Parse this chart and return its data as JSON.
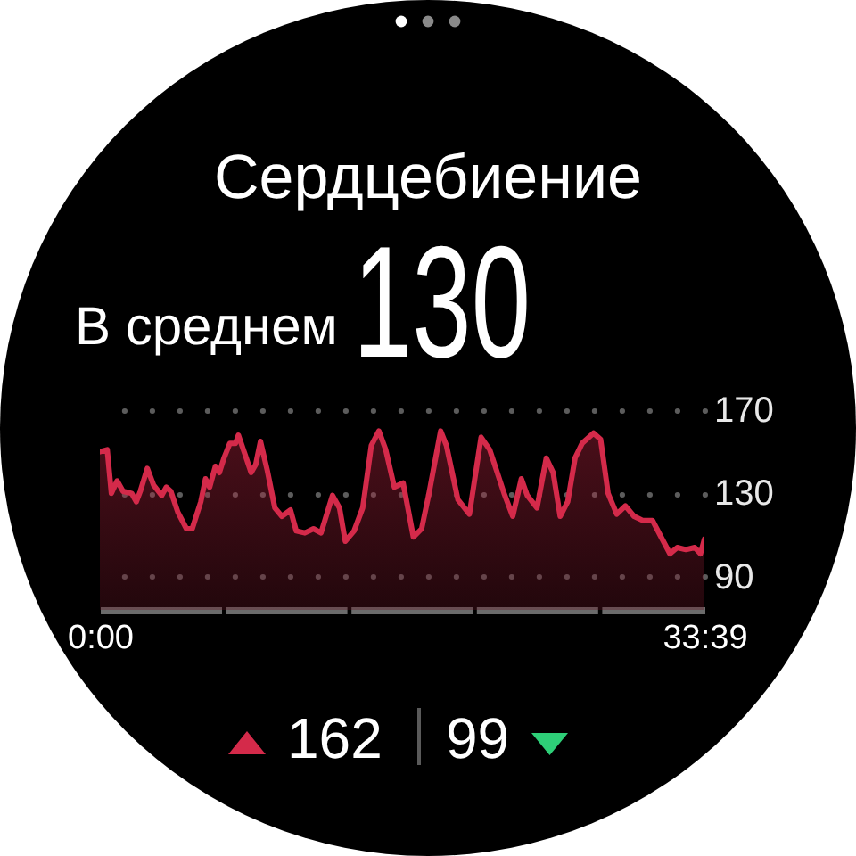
{
  "chart_data": {
    "type": "area",
    "title": "Сердцебиение",
    "annotations": [
      "В среднем",
      "130",
      "162",
      "99"
    ],
    "x": [
      0,
      0.41,
      0.64,
      0.96,
      1.29,
      1.77,
      2.03,
      2.25,
      2.64,
      2.99,
      3.44,
      3.7,
      3.95,
      4.34,
      4.82,
      5.14,
      5.62,
      5.88,
      6.11,
      6.43,
      6.65,
      6.91,
      7.23,
      7.55,
      7.71,
      8.03,
      8.42,
      8.68,
      8.94,
      9.32,
      9.74,
      10.13,
      10.61,
      10.93,
      11.41,
      11.89,
      12.31,
      12.95,
      13.34,
      13.66,
      14.15,
      14.63,
      15.11,
      15.53,
      15.91,
      16.39,
      16.88,
      17.45,
      17.91,
      18.32,
      18.97,
      19.29,
      19.93,
      20.57,
      21.22,
      21.7,
      22.5,
      22.98,
      23.46,
      23.79,
      24.33,
      24.85,
      25.23,
      25.62,
      26.04,
      26.45,
      26.84,
      27.48,
      27.87,
      28.29,
      28.77,
      29.25,
      29.73,
      30.21,
      30.76,
      31.18,
      31.73,
      32.14,
      32.62,
      33.11,
      33.43,
      33.65
    ],
    "values": [
      150,
      151,
      130,
      136,
      131,
      130,
      126,
      131,
      142,
      134,
      129,
      133,
      131,
      121,
      113,
      113,
      126,
      137,
      133,
      143,
      140,
      147,
      154,
      154,
      158,
      150,
      140,
      144,
      155,
      141,
      123,
      119,
      122,
      112,
      111,
      113,
      111,
      129,
      123,
      107,
      112,
      123,
      153,
      160,
      151,
      133,
      135,
      109,
      113,
      130,
      160,
      153,
      127,
      120,
      157,
      151,
      130,
      119,
      137,
      129,
      123,
      147,
      140,
      119,
      126,
      147,
      154,
      159,
      156,
      130,
      120,
      124,
      119,
      117,
      117,
      110,
      101,
      104,
      103,
      104,
      101,
      108
    ],
    "color": "#d42a4a",
    "xlim": [
      0,
      33.65
    ],
    "xticks": [
      {
        "value": 0,
        "label": "0:00"
      },
      {
        "value": 33.65,
        "label": "33:39"
      }
    ],
    "ylim": [
      74,
      170
    ],
    "yticks": [
      90,
      130,
      170
    ],
    "grid": "y"
  }
}
